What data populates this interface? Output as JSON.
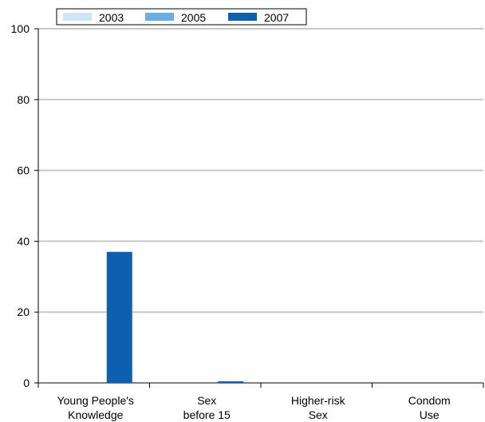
{
  "chart_data": {
    "type": "bar",
    "categories": [
      [
        "Young People's",
        "Knowledge"
      ],
      [
        "Sex",
        "before 15"
      ],
      [
        "Higher-risk",
        "Sex"
      ],
      [
        "Condom",
        "Use"
      ]
    ],
    "series": [
      {
        "name": "2003",
        "color": "#cce5f9",
        "values": [
          0,
          0,
          0,
          0
        ]
      },
      {
        "name": "2005",
        "color": "#6aaee8",
        "values": [
          0,
          0,
          0,
          0
        ]
      },
      {
        "name": "2007",
        "color": "#0d5fb0",
        "values": [
          37,
          0.3,
          0,
          0
        ]
      }
    ],
    "ylim": [
      0,
      100
    ],
    "yticks": [
      0,
      20,
      40,
      60,
      80,
      100
    ],
    "grid": true,
    "legend_position": "top-left",
    "title": "",
    "xlabel": "",
    "ylabel": ""
  }
}
